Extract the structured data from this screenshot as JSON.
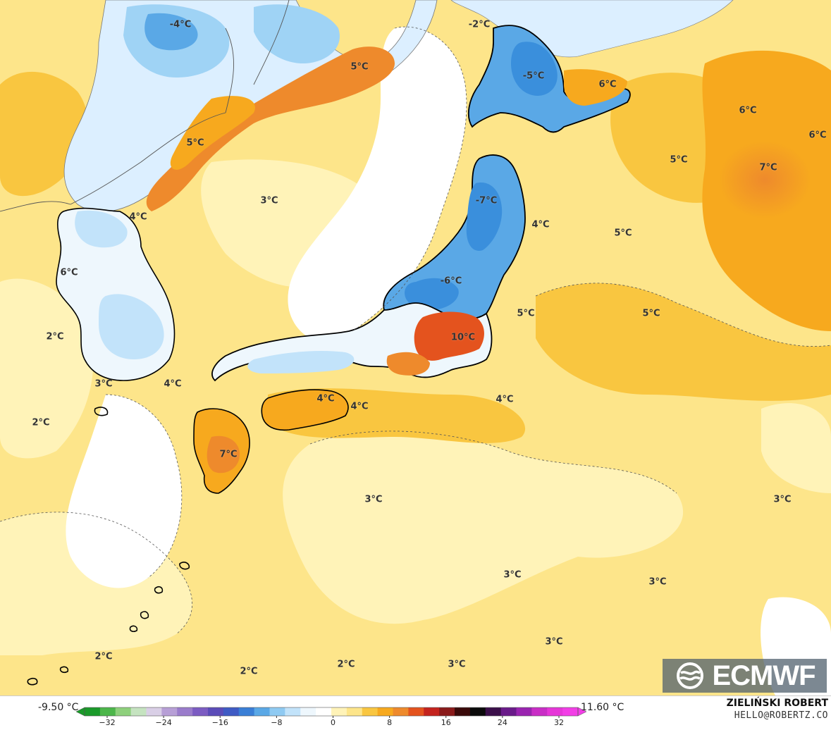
{
  "map": {
    "colors": {
      "sea_warm": "#fde58a",
      "sea_mid": "#fff3b8",
      "neutral": "#ffffff",
      "cold_light": "#dcefff",
      "cold": "#9fd3f5",
      "cold_deep": "#3a8fdc",
      "warm": "#f9c640",
      "warm_deep": "#f7a91e",
      "hot": "#ee8a2c",
      "hotter": "#e4531e",
      "coast": "#000000",
      "border": "#666666"
    },
    "labels": [
      {
        "text": "-4°C",
        "type": "cold"
      },
      {
        "text": "-2°C",
        "type": "cold"
      },
      {
        "text": "5°C",
        "type": "warm"
      },
      {
        "text": "-5°C",
        "type": "cold"
      },
      {
        "text": "6°C",
        "type": "warm"
      },
      {
        "text": "6°C",
        "type": "warm"
      },
      {
        "text": "6°C",
        "type": "warm"
      },
      {
        "text": "5°C",
        "type": "warm"
      },
      {
        "text": "5°C",
        "type": "warm"
      },
      {
        "text": "7°C",
        "type": "warm"
      },
      {
        "text": "3°C",
        "type": "warm"
      },
      {
        "text": "-7°C",
        "type": "cold"
      },
      {
        "text": "4°C",
        "type": "warm"
      },
      {
        "text": "4°C",
        "type": "warm"
      },
      {
        "text": "5°C",
        "type": "warm"
      },
      {
        "text": "6°C",
        "type": "warm"
      },
      {
        "text": "-6°C",
        "type": "cold"
      },
      {
        "text": "5°C",
        "type": "warm"
      },
      {
        "text": "5°C",
        "type": "warm"
      },
      {
        "text": "2°C",
        "type": "warm"
      },
      {
        "text": "10°C",
        "type": "warm"
      },
      {
        "text": "3°C",
        "type": "warm"
      },
      {
        "text": "4°C",
        "type": "warm"
      },
      {
        "text": "4°C",
        "type": "warm"
      },
      {
        "text": "4°C",
        "type": "warm"
      },
      {
        "text": "4°C",
        "type": "warm"
      },
      {
        "text": "2°C",
        "type": "warm"
      },
      {
        "text": "7°C",
        "type": "warm"
      },
      {
        "text": "3°C",
        "type": "warm"
      },
      {
        "text": "3°C",
        "type": "warm"
      },
      {
        "text": "3°C",
        "type": "warm"
      },
      {
        "text": "3°C",
        "type": "warm"
      },
      {
        "text": "3°C",
        "type": "warm"
      },
      {
        "text": "2°C",
        "type": "warm"
      },
      {
        "text": "2°C",
        "type": "warm"
      },
      {
        "text": "2°C",
        "type": "warm"
      },
      {
        "text": "3°C",
        "type": "warm"
      }
    ]
  },
  "logo": {
    "text": "ECMWF",
    "icon": "ecmwf-logo-icon"
  },
  "legend": {
    "min_label": "-9.50 °C",
    "max_label": "11.60 °C",
    "ticks": [
      "−32",
      "−24",
      "−16",
      "−8",
      "0",
      "8",
      "16",
      "24",
      "32"
    ],
    "colors": [
      "#1a9a2a",
      "#4cb64a",
      "#8ed07c",
      "#c5e3c0",
      "#d9cfe6",
      "#b79fd6",
      "#9a7ccb",
      "#7c5cc2",
      "#5b4cb8",
      "#3f5bc4",
      "#3a7fd6",
      "#5aa8e6",
      "#8fcaf2",
      "#c2e3fa",
      "#eef7fd",
      "#ffffff",
      "#fff3b8",
      "#fde58a",
      "#f9c640",
      "#f7a91e",
      "#ee8a2c",
      "#e4531e",
      "#c4231e",
      "#8a1a1a",
      "#3a0a0a",
      "#0b0b0b",
      "#3b0f4a",
      "#6a1b8a",
      "#9a24b0",
      "#c92ec6",
      "#e636d8",
      "#f23ee6"
    ]
  },
  "credits": {
    "author": "ZIELIŃSKI ROBERT",
    "email": "HELLO@ROBERTZ.CO"
  }
}
